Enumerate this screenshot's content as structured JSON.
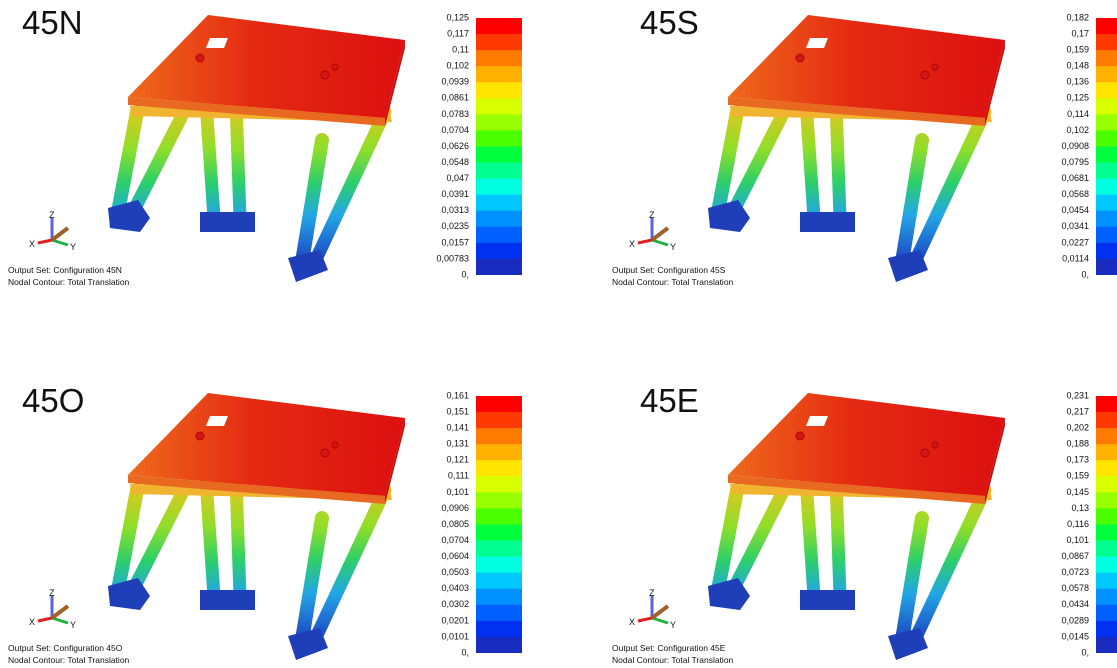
{
  "triad_labels": {
    "z": "Z",
    "x": "X",
    "y": "Y"
  },
  "panels": [
    {
      "title": "45N",
      "legend": [
        "0,125",
        "0,117",
        "0,11",
        "0,102",
        "0,0939",
        "0,0861",
        "0,0783",
        "0,0704",
        "0,0626",
        "0,0548",
        "0,047",
        "0,0391",
        "0,0313",
        "0,0235",
        "0,0157",
        "0,00783",
        "0,"
      ],
      "output_set": "Output Set: Configuration 45N",
      "contour": "Nodal Contour: Total Translation"
    },
    {
      "title": "45S",
      "legend": [
        "0,182",
        "0,17",
        "0,159",
        "0,148",
        "0,136",
        "0,125",
        "0,114",
        "0,102",
        "0,0908",
        "0,0795",
        "0,0681",
        "0,0568",
        "0,0454",
        "0,0341",
        "0,0227",
        "0,0114",
        "0,"
      ],
      "output_set": "Output Set: Configuration 45S",
      "contour": "Nodal Contour: Total Translation"
    },
    {
      "title": "45O",
      "legend": [
        "0,161",
        "0,151",
        "0,141",
        "0,131",
        "0,121",
        "0,111",
        "0,101",
        "0,0906",
        "0,0805",
        "0,0704",
        "0,0604",
        "0,0503",
        "0,0403",
        "0,0302",
        "0,0201",
        "0,0101",
        "0,"
      ],
      "output_set": "Output Set: Configuration 45O",
      "contour": "Nodal Contour: Total Translation"
    },
    {
      "title": "45E",
      "legend": [
        "0,231",
        "0,217",
        "0,202",
        "0,188",
        "0,173",
        "0,159",
        "0,145",
        "0,13",
        "0,116",
        "0,101",
        "0,0867",
        "0,0723",
        "0,0578",
        "0,0434",
        "0,0289",
        "0,0145",
        "0,"
      ],
      "output_set": "Output Set: Configuration 45E",
      "contour": "Nodal Contour: Total Translation"
    }
  ]
}
